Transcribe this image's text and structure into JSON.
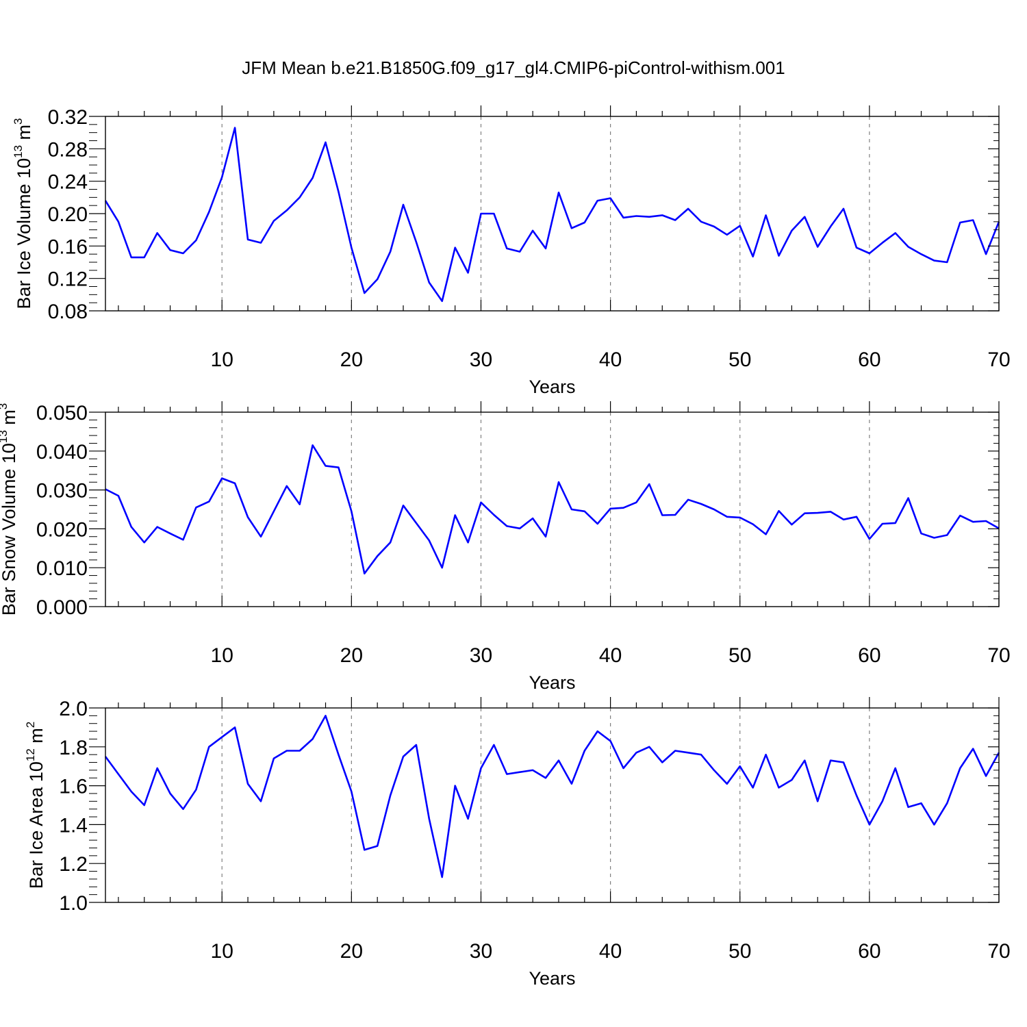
{
  "title": "JFM Mean b.e21.B1850G.f09_g17_gl4.CMIP6-piControl-withism.001",
  "colors": {
    "series": "#0000ff",
    "axis": "#000000",
    "grid": "#808080"
  },
  "chart_data": [
    {
      "type": "line",
      "name": "ice-volume",
      "ylabel": {
        "text": "Bar Ice Volume 10",
        "exp": "13",
        "unit": " m",
        "unit_exp": "3"
      },
      "xlabel": "Years",
      "xlim": [
        1,
        70
      ],
      "ylim": [
        0.08,
        0.32
      ],
      "x_ticks": [
        10,
        20,
        30,
        40,
        50,
        60,
        70
      ],
      "x_tick_labels": [
        "10",
        "20",
        "30",
        "40",
        "50",
        "60",
        "70"
      ],
      "y_ticks": [
        0.08,
        0.12,
        0.16,
        0.2,
        0.24,
        0.28,
        0.32
      ],
      "y_tick_labels": [
        "0.08",
        "0.12",
        "0.16",
        "0.20",
        "0.24",
        "0.28",
        "0.32"
      ],
      "grid": "dashed vertical at major x ticks",
      "series": [
        {
          "name": "Bar Ice Volume",
          "values": [
            0.216,
            0.19,
            0.146,
            0.146,
            0.176,
            0.155,
            0.151,
            0.167,
            0.202,
            0.245,
            0.306,
            0.168,
            0.164,
            0.191,
            0.204,
            0.22,
            0.244,
            0.288,
            0.227,
            0.158,
            0.102,
            0.119,
            0.153,
            0.211,
            0.165,
            0.115,
            0.092,
            0.158,
            0.127,
            0.2,
            0.2,
            0.157,
            0.153,
            0.179,
            0.157,
            0.226,
            0.182,
            0.189,
            0.216,
            0.219,
            0.195,
            0.197,
            0.196,
            0.198,
            0.192,
            0.206,
            0.19,
            0.184,
            0.174,
            0.185,
            0.147,
            0.198,
            0.148,
            0.179,
            0.196,
            0.159,
            0.184,
            0.206,
            0.158,
            0.151,
            0.164,
            0.176,
            0.159,
            0.15,
            0.142,
            0.14,
            0.189,
            0.192,
            0.15,
            0.19
          ]
        }
      ]
    },
    {
      "type": "line",
      "name": "snow-volume",
      "ylabel": {
        "text": "Bar Snow Volume 10",
        "exp": "13",
        "unit": " m",
        "unit_exp": "3"
      },
      "xlabel": "Years",
      "xlim": [
        1,
        70
      ],
      "ylim": [
        0.0,
        0.05
      ],
      "x_ticks": [
        10,
        20,
        30,
        40,
        50,
        60,
        70
      ],
      "x_tick_labels": [
        "10",
        "20",
        "30",
        "40",
        "50",
        "60",
        "70"
      ],
      "y_ticks": [
        0.0,
        0.01,
        0.02,
        0.03,
        0.04,
        0.05
      ],
      "y_tick_labels": [
        "0.000",
        "0.010",
        "0.020",
        "0.030",
        "0.040",
        "0.050"
      ],
      "grid": "dashed vertical at major x ticks",
      "series": [
        {
          "name": "Bar Snow Volume",
          "values": [
            0.0302,
            0.0285,
            0.0205,
            0.0165,
            0.0205,
            0.0188,
            0.0172,
            0.0255,
            0.027,
            0.033,
            0.0317,
            0.023,
            0.018,
            0.0245,
            0.031,
            0.0263,
            0.0415,
            0.0362,
            0.0358,
            0.0245,
            0.0085,
            0.013,
            0.0165,
            0.026,
            0.0215,
            0.017,
            0.01,
            0.0235,
            0.0165,
            0.0268,
            0.0236,
            0.0207,
            0.0201,
            0.0227,
            0.018,
            0.032,
            0.025,
            0.0245,
            0.0213,
            0.0252,
            0.0254,
            0.0268,
            0.0315,
            0.0235,
            0.0236,
            0.0275,
            0.0264,
            0.025,
            0.0231,
            0.0229,
            0.0212,
            0.0186,
            0.0246,
            0.0211,
            0.024,
            0.0241,
            0.0244,
            0.0224,
            0.0231,
            0.0174,
            0.0213,
            0.0215,
            0.0279,
            0.0188,
            0.0177,
            0.0184,
            0.0234,
            0.0218,
            0.022,
            0.0201
          ]
        }
      ]
    },
    {
      "type": "line",
      "name": "ice-area",
      "ylabel": {
        "text": "Bar Ice Area 10",
        "exp": "12",
        "unit": " m",
        "unit_exp": "2"
      },
      "xlabel": "Years",
      "xlim": [
        1,
        70
      ],
      "ylim": [
        1.0,
        2.0
      ],
      "x_ticks": [
        10,
        20,
        30,
        40,
        50,
        60,
        70
      ],
      "x_tick_labels": [
        "10",
        "20",
        "30",
        "40",
        "50",
        "60",
        "70"
      ],
      "y_ticks": [
        1.0,
        1.2,
        1.4,
        1.6,
        1.8,
        2.0
      ],
      "y_tick_labels": [
        "1.0",
        "1.2",
        "1.4",
        "1.6",
        "1.8",
        "2.0"
      ],
      "grid": "dashed vertical at major x ticks",
      "series": [
        {
          "name": "Bar Ice Area",
          "values": [
            1.75,
            1.66,
            1.57,
            1.5,
            1.69,
            1.56,
            1.48,
            1.58,
            1.8,
            1.85,
            1.9,
            1.61,
            1.52,
            1.74,
            1.78,
            1.78,
            1.84,
            1.96,
            1.76,
            1.57,
            1.27,
            1.29,
            1.55,
            1.75,
            1.81,
            1.43,
            1.13,
            1.6,
            1.43,
            1.69,
            1.81,
            1.66,
            1.67,
            1.68,
            1.64,
            1.73,
            1.61,
            1.78,
            1.88,
            1.83,
            1.69,
            1.77,
            1.8,
            1.72,
            1.78,
            1.77,
            1.76,
            1.68,
            1.61,
            1.7,
            1.59,
            1.76,
            1.59,
            1.63,
            1.73,
            1.52,
            1.73,
            1.72,
            1.55,
            1.4,
            1.52,
            1.69,
            1.49,
            1.51,
            1.4,
            1.51,
            1.69,
            1.79,
            1.65,
            1.77
          ]
        }
      ]
    }
  ]
}
